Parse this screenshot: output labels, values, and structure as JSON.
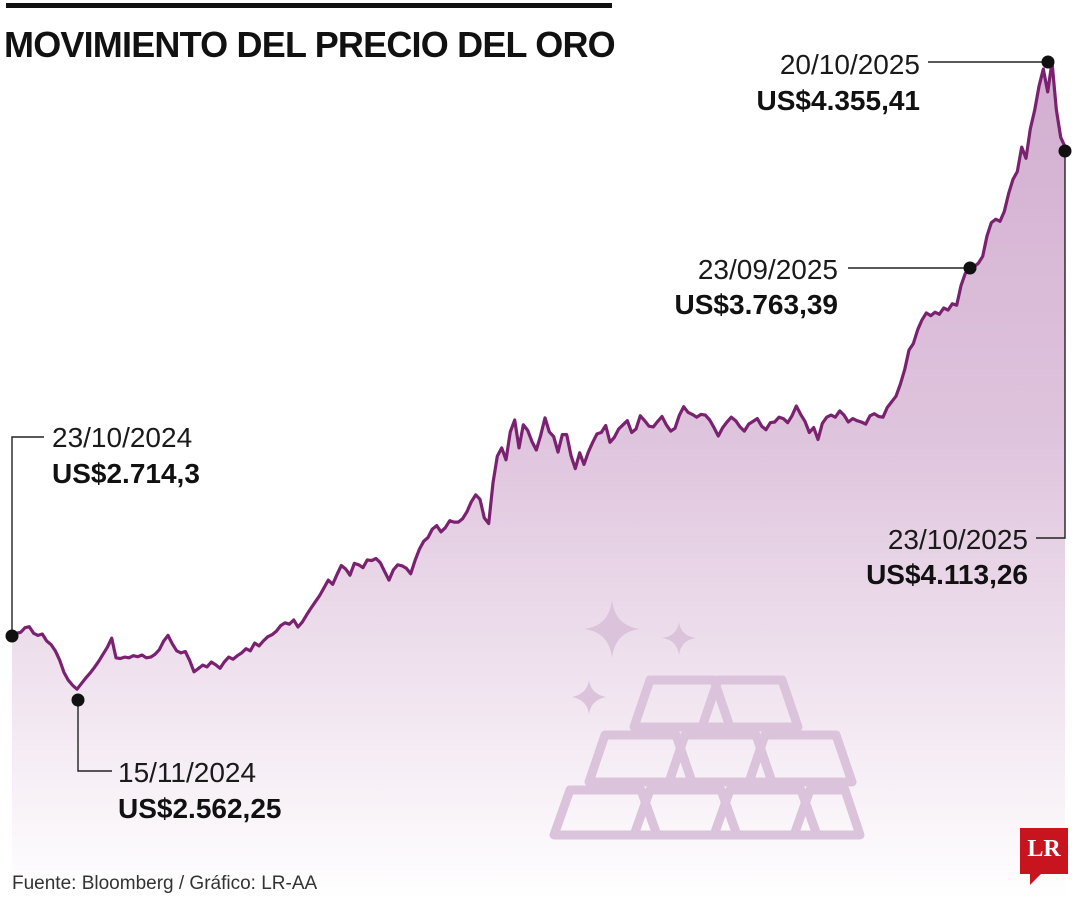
{
  "title": "MOVIMIENTO DEL PRECIO DEL ORO",
  "source": "Fuente: Bloomberg / Gráfico: LR-AA",
  "logo": "LR",
  "colors": {
    "line": "#7a2270",
    "fill_top": "#d2aed0",
    "fill_bottom": "#ffffff",
    "decoration": "#dcc3dc",
    "logo": "#c8141e"
  },
  "decoration_icon": "gold-bars-sparkles-icon",
  "chart_data": {
    "type": "area",
    "x_start": "23/10/2024",
    "x_end": "23/10/2025",
    "ylim": [
      2400,
      4400
    ],
    "values": [
      2714.3,
      2722,
      2725,
      2738,
      2741,
      2722,
      2716,
      2720,
      2700,
      2690,
      2672,
      2645,
      2610,
      2588,
      2573,
      2562.25,
      2578,
      2594,
      2608,
      2624,
      2642,
      2662,
      2682,
      2708,
      2652,
      2650,
      2654,
      2652,
      2658,
      2655,
      2660,
      2652,
      2654,
      2662,
      2675,
      2700,
      2716,
      2692,
      2672,
      2666,
      2670,
      2644,
      2612,
      2621,
      2631,
      2626,
      2640,
      2632,
      2622,
      2640,
      2654,
      2648,
      2658,
      2666,
      2678,
      2672,
      2694,
      2686,
      2700,
      2712,
      2718,
      2728,
      2744,
      2752,
      2748,
      2760,
      2740,
      2754,
      2775,
      2794,
      2812,
      2830,
      2852,
      2874,
      2862,
      2890,
      2916,
      2906,
      2888,
      2922,
      2918,
      2910,
      2932,
      2930,
      2936,
      2924,
      2898,
      2874,
      2903,
      2918,
      2915,
      2908,
      2892,
      2930,
      2962,
      2985,
      2996,
      3020,
      3030,
      3012,
      3024,
      3044,
      3040,
      3040,
      3050,
      3070,
      3098,
      3118,
      3105,
      3052,
      3036,
      3152,
      3228,
      3252,
      3218,
      3298,
      3332,
      3252,
      3318,
      3302,
      3270,
      3246,
      3288,
      3338,
      3298,
      3284,
      3240,
      3290,
      3290,
      3230,
      3193,
      3238,
      3205,
      3240,
      3268,
      3292,
      3296,
      3316,
      3268,
      3282,
      3306,
      3318,
      3330,
      3296,
      3306,
      3344,
      3330,
      3314,
      3312,
      3328,
      3342,
      3318,
      3300,
      3308,
      3345,
      3370,
      3354,
      3348,
      3340,
      3348,
      3346,
      3332,
      3310,
      3286,
      3310,
      3326,
      3340,
      3330,
      3312,
      3300,
      3320,
      3328,
      3336,
      3314,
      3304,
      3324,
      3326,
      3340,
      3336,
      3324,
      3344,
      3372,
      3348,
      3328,
      3296,
      3310,
      3276,
      3322,
      3340,
      3346,
      3340,
      3358,
      3346,
      3326,
      3336,
      3330,
      3326,
      3320,
      3344,
      3350,
      3342,
      3340,
      3368,
      3384,
      3400,
      3434,
      3476,
      3532,
      3550,
      3590,
      3618,
      3638,
      3630,
      3640,
      3634,
      3652,
      3646,
      3664,
      3660,
      3716,
      3751,
      3763.39,
      3770,
      3780,
      3800,
      3858,
      3896,
      3906,
      3900,
      3928,
      3980,
      4020,
      4042,
      4112,
      4080,
      4164,
      4218,
      4286,
      4335,
      4270,
      4355.41,
      4220,
      4140,
      4113.26
    ]
  },
  "annotations": [
    {
      "date": "23/10/2024",
      "value": "US$2.714,3"
    },
    {
      "date": "15/11/2024",
      "value": "US$2.562,25"
    },
    {
      "date": "23/09/2025",
      "value": "US$3.763,39"
    },
    {
      "date": "20/10/2025",
      "value": "US$4.355,41"
    },
    {
      "date": "23/10/2025",
      "value": "US$4.113,26"
    }
  ]
}
